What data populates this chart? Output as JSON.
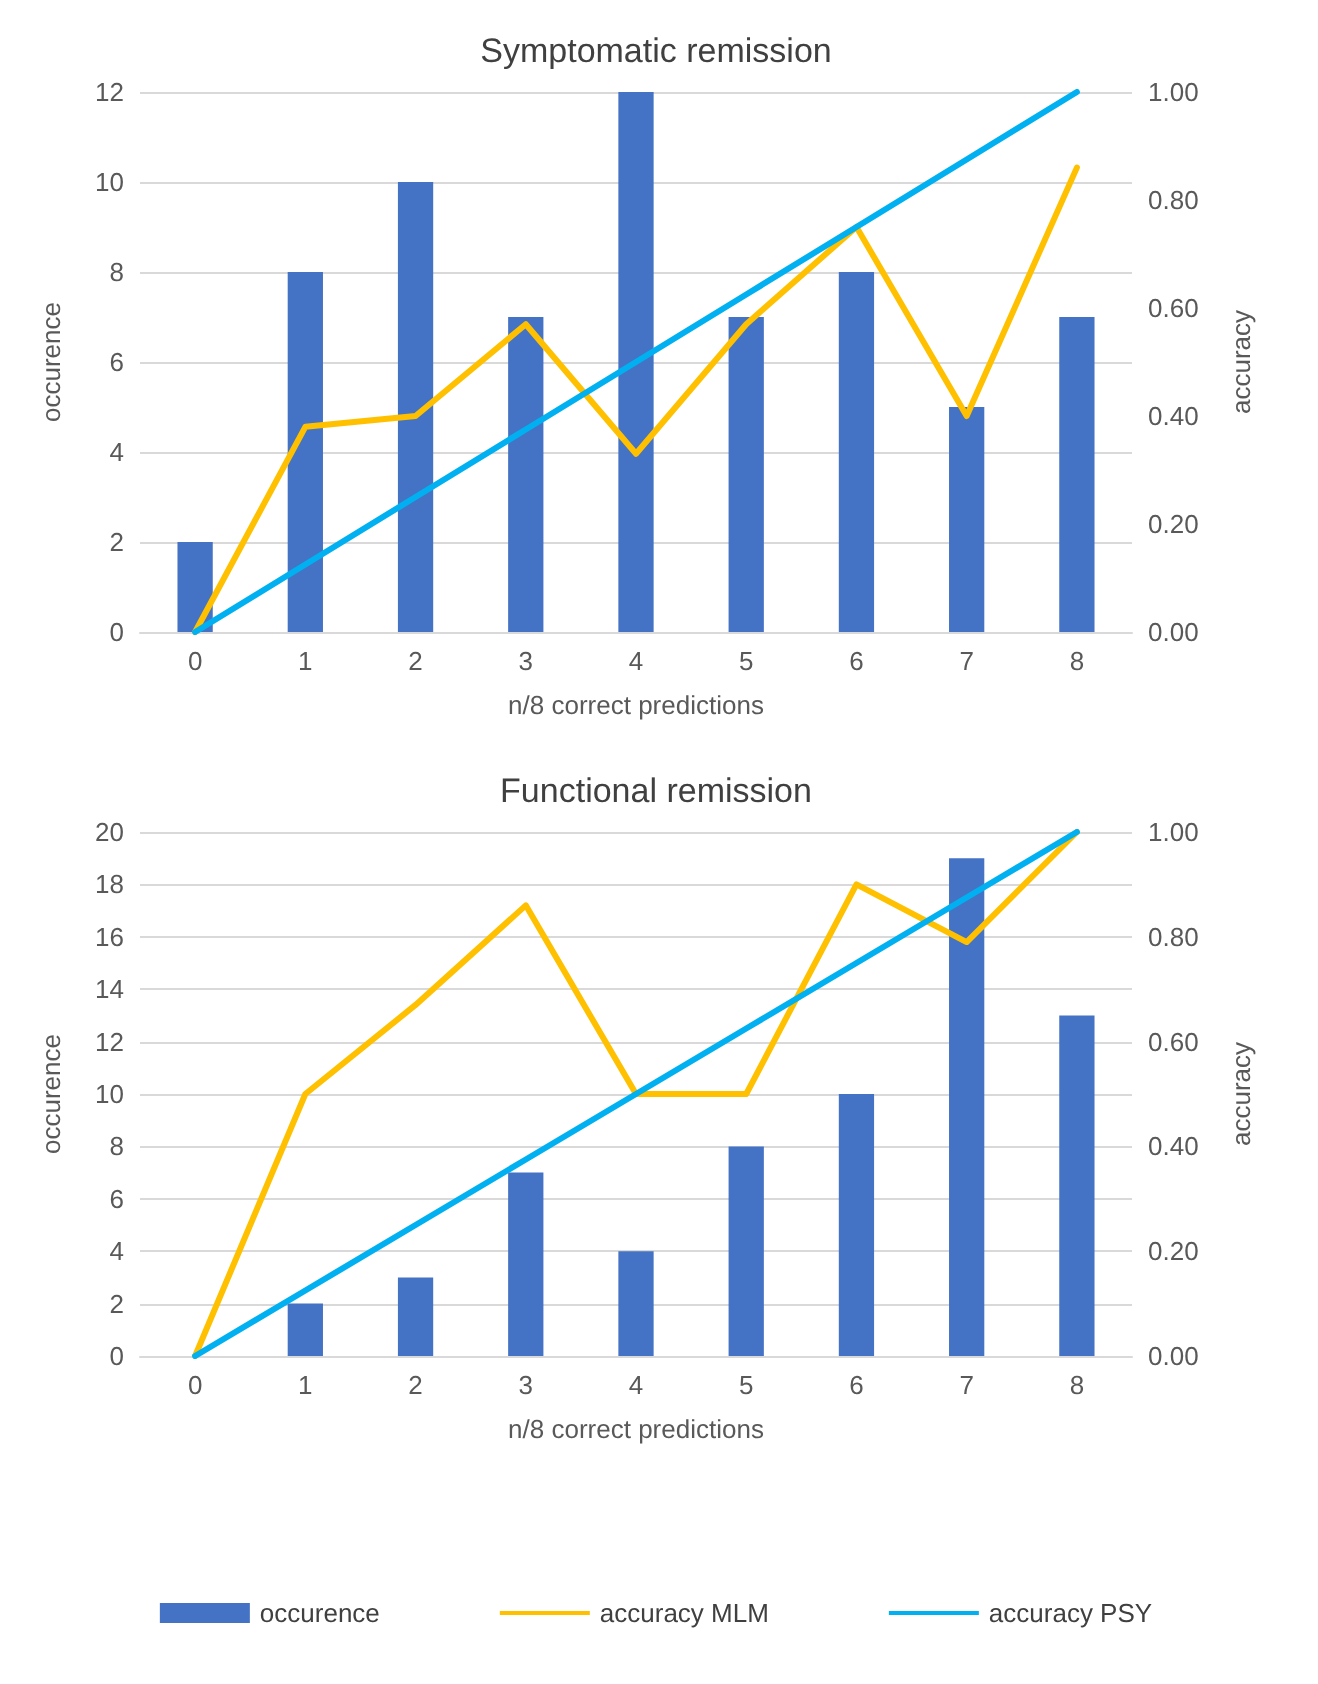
{
  "chart_data": [
    {
      "type": "bar",
      "title": "Symptomatic remission",
      "xlabel": "n/8 correct predictions",
      "ylabel": "occurence",
      "y2label": "accuracy",
      "categories": [
        "0",
        "1",
        "2",
        "3",
        "4",
        "5",
        "6",
        "7",
        "8"
      ],
      "series": [
        {
          "color": "#4472c4",
          "values": [
            2,
            8,
            10,
            7,
            12,
            7,
            8,
            5,
            7
          ]
        },
        {
          "type": "line",
          "axis": "y2",
          "color": "#ffc000",
          "values": [
            0,
            0.38,
            0.4,
            0.57,
            0.33,
            0.57,
            0.75,
            0.4,
            0.86
          ]
        },
        {
          "type": "line",
          "axis": "y2",
          "color": "#00b0f0",
          "values": [
            0,
            0.125,
            0.25,
            0.375,
            0.5,
            0.625,
            0.75,
            0.875,
            1
          ]
        }
      ],
      "ylim": [
        0,
        12
      ],
      "yticks": [
        0,
        2,
        4,
        6,
        8,
        10,
        12
      ],
      "y2lim": [
        0,
        1
      ],
      "y2ticks": [
        {
          "value": 0,
          "label": "0.00"
        },
        {
          "value": 0.2,
          "label": "0.20"
        },
        {
          "value": 0.4,
          "label": "0.40"
        },
        {
          "value": 0.6,
          "label": "0.60"
        },
        {
          "value": 0.8,
          "label": "0.80"
        },
        {
          "value": 1,
          "label": "1.00"
        }
      ],
      "grid": "y",
      "legend": false,
      "marker": "none",
      "line_style": "solid"
    },
    {
      "type": "bar",
      "title": "Functional remission",
      "xlabel": "n/8 correct predictions",
      "ylabel": "occurence",
      "y2label": "accuracy",
      "categories": [
        "0",
        "1",
        "2",
        "3",
        "4",
        "5",
        "6",
        "7",
        "8"
      ],
      "series": [
        {
          "name": "occurence",
          "color": "#4472c4",
          "values": [
            0,
            2,
            3,
            7,
            4,
            8,
            10,
            19,
            13
          ]
        },
        {
          "type": "line",
          "axis": "y2",
          "name": "accuracy MLM",
          "color": "#ffc000",
          "values": [
            0,
            0.5,
            0.67,
            0.86,
            0.5,
            0.5,
            0.9,
            0.79,
            1.0
          ]
        },
        {
          "type": "line",
          "axis": "y2",
          "name": "accuracy PSY",
          "color": "#00b0f0",
          "values": [
            0,
            0.125,
            0.25,
            0.375,
            0.5,
            0.625,
            0.75,
            0.875,
            1
          ]
        }
      ],
      "ylim": [
        0,
        20
      ],
      "yticks": [
        0,
        2,
        4,
        6,
        8,
        10,
        12,
        14,
        16,
        18,
        20
      ],
      "y2lim": [
        0,
        1
      ],
      "y2ticks": [
        {
          "value": 0,
          "label": "0.00"
        },
        {
          "value": 0.2,
          "label": "0.20"
        },
        {
          "value": 0.4,
          "label": "0.40"
        },
        {
          "value": 0.6,
          "label": "0.60"
        },
        {
          "value": 0.8,
          "label": "0.80"
        },
        {
          "value": 1,
          "label": "1.00"
        }
      ],
      "grid": "y",
      "legend": "bottom",
      "marker": "none",
      "line_style": "solid"
    }
  ]
}
